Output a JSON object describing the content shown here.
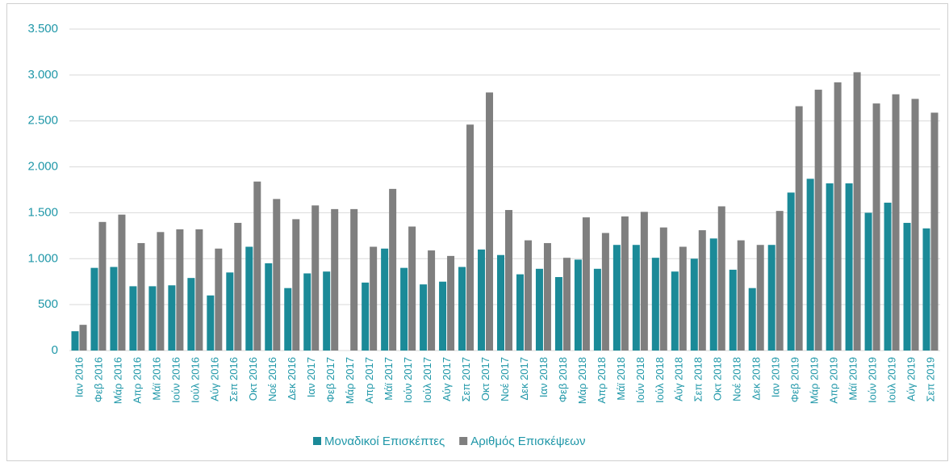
{
  "chart_data": {
    "type": "bar",
    "categories": [
      "Ιαν 2016",
      "Φεβ 2016",
      "Μάρ 2016",
      "Απρ 2016",
      "Μάϊ 2016",
      "Ιούν 2016",
      "Ιούλ 2016",
      "Αύγ 2016",
      "Σεπ 2016",
      "Οκτ 2016",
      "Νοέ 2016",
      "Δεκ 2016",
      "Ιαν 2017",
      "Φεβ 2017",
      "Μάρ 2017",
      "Απρ 2017",
      "Μάϊ 2017",
      "Ιούν 2017",
      "Ιούλ 2017",
      "Αύγ 2017",
      "Σεπ 2017",
      "Οκτ 2017",
      "Νοέ 2017",
      "Δεκ 2017",
      "Ιαν 2018",
      "Φεβ 2018",
      "Μάρ 2018",
      "Απρ 2018",
      "Μάϊ 2018",
      "Ιούν 2018",
      "Ιούλ 2018",
      "Αύγ 2018",
      "Σεπ 2018",
      "Οκτ 2018",
      "Νοέ 2018",
      "Δεκ 2018",
      "Ιαν 2019",
      "Φεβ 2019",
      "Μάρ 2019",
      "Απρ 2019",
      "Μάϊ 2019",
      "Ιούν 2019",
      "Ιούλ 2019",
      "Αύγ 2019",
      "Σεπ 2019"
    ],
    "series": [
      {
        "name": "Μοναδικοί Επισκέπτες",
        "color": "#1b8a98",
        "values": [
          210,
          900,
          910,
          700,
          700,
          710,
          790,
          600,
          850,
          1130,
          950,
          680,
          840,
          860,
          0,
          740,
          1110,
          900,
          720,
          750,
          910,
          1100,
          1040,
          830,
          890,
          800,
          990,
          890,
          1150,
          1150,
          1010,
          860,
          1000,
          1220,
          880,
          680,
          1150,
          1720,
          1870,
          1820,
          1820,
          1500,
          1610,
          1390,
          1330
        ]
      },
      {
        "name": "Αριθμός Επισκέψεων",
        "color": "#7f7f7f",
        "values": [
          280,
          1400,
          1480,
          1170,
          1290,
          1320,
          1320,
          1110,
          1390,
          1840,
          1650,
          1430,
          1580,
          1540,
          1540,
          1130,
          1760,
          1350,
          1090,
          1030,
          2460,
          2810,
          1530,
          1200,
          1170,
          1010,
          1450,
          1280,
          1460,
          1510,
          1340,
          1130,
          1310,
          1570,
          1200,
          1150,
          1520,
          2660,
          2840,
          2920,
          3030,
          2690,
          2790,
          2740,
          2590
        ]
      }
    ],
    "ylim": [
      0,
      3500
    ],
    "yticks": [
      0,
      500,
      {
        "value": 1000,
        "label": "1.000"
      },
      {
        "value": 1500,
        "label": "1.500"
      },
      {
        "value": 2000,
        "label": "2.000"
      },
      {
        "value": 2500,
        "label": "2.500"
      },
      {
        "value": 3000,
        "label": "3.000"
      },
      {
        "value": 3500,
        "label": "3.500"
      }
    ],
    "grid": true,
    "legend": "bottom"
  }
}
